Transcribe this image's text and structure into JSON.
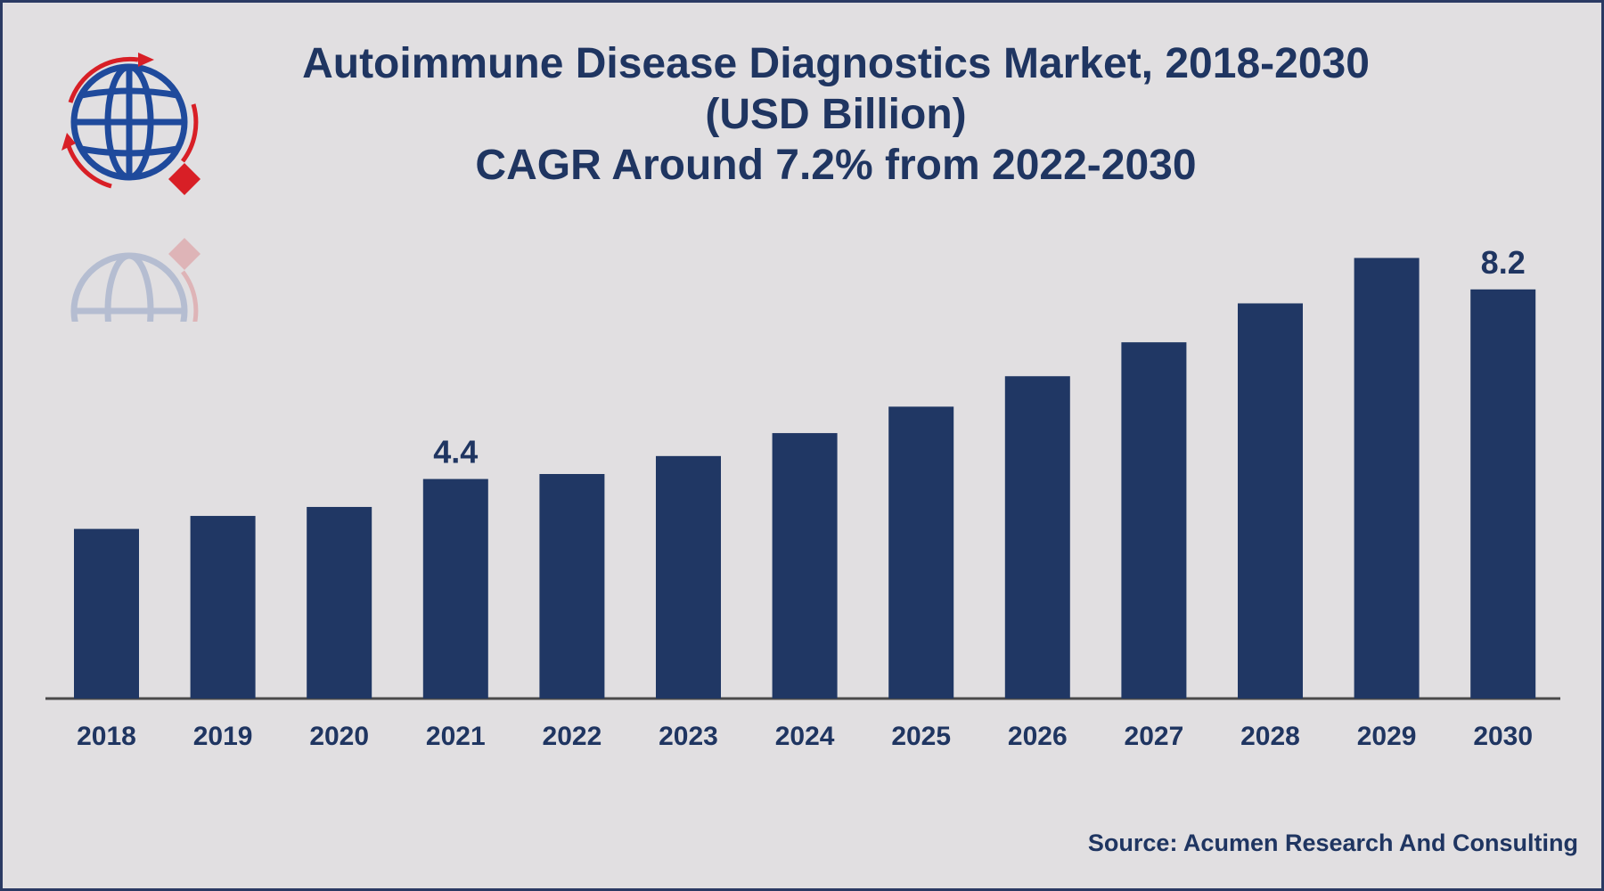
{
  "header": {
    "title_lines": [
      "Autoimmune Disease Diagnostics Market, 2018-2030",
      "(USD Billion)",
      "CAGR Around 7.2% from 2022-2030"
    ]
  },
  "footer": {
    "source": "Source: Acumen Research And Consulting"
  },
  "colors": {
    "background": "#e1dfe1",
    "bar": "#203764",
    "text": "#1f3561",
    "logo_blue": "#1f4a9c",
    "logo_red": "#d81f26"
  },
  "logo": {
    "icon": "globe-arrows-logo-icon"
  },
  "chart_data": {
    "type": "bar",
    "categories": [
      "2018",
      "2019",
      "2020",
      "2021",
      "2022",
      "2023",
      "2024",
      "2025",
      "2026",
      "2027",
      "2028",
      "2029",
      "2030"
    ],
    "values": [
      3.4,
      3.66,
      3.84,
      4.4,
      4.5,
      4.86,
      5.32,
      5.85,
      6.46,
      7.14,
      7.92,
      8.83,
      8.2
    ],
    "data_labels": [
      {
        "index": 3,
        "text": "4.4"
      },
      {
        "index": 12,
        "text": "8.2"
      }
    ],
    "ylim": [
      0,
      10
    ],
    "grid": false,
    "legend": "none",
    "xlabel": "",
    "ylabel": ""
  }
}
